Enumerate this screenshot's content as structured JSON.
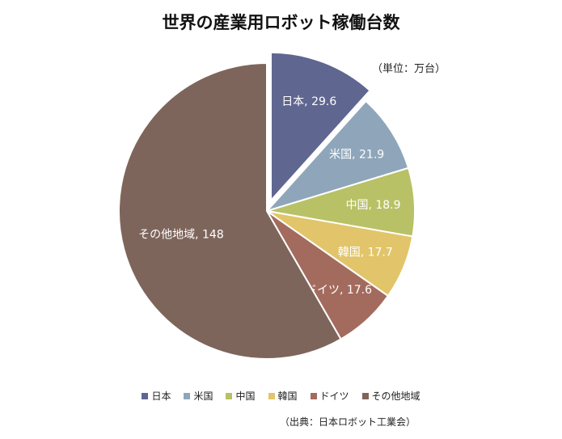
{
  "chart_data": {
    "type": "pie",
    "title": "世界の産業用ロボット稼働台数",
    "unit_note": "（単位：万台）",
    "source_note": "（出典：日本ロボット工業会）",
    "legend_position": "bottom",
    "slices": [
      {
        "label": "日本",
        "value": 29.6,
        "display": "29.6",
        "color": "#5f6690",
        "exploded": true,
        "text_color": "#ffffff"
      },
      {
        "label": "米国",
        "value": 21.9,
        "display": "21.9",
        "color": "#8fa6ba",
        "exploded": false,
        "text_color": "#ffffff"
      },
      {
        "label": "中国",
        "value": 18.9,
        "display": "18.9",
        "color": "#b8c166",
        "exploded": false,
        "text_color": "#ffffff"
      },
      {
        "label": "韓国",
        "value": 17.7,
        "display": "17.7",
        "color": "#e2c56a",
        "exploded": false,
        "text_color": "#ffffff"
      },
      {
        "label": "ドイツ",
        "value": 17.6,
        "display": "17.6",
        "color": "#a36b5e",
        "exploded": false,
        "text_color": "#ffffff"
      },
      {
        "label": "その他地域",
        "value": 148,
        "display": "148",
        "color": "#7e655b",
        "exploded": false,
        "text_color": "#ffffff"
      }
    ]
  }
}
